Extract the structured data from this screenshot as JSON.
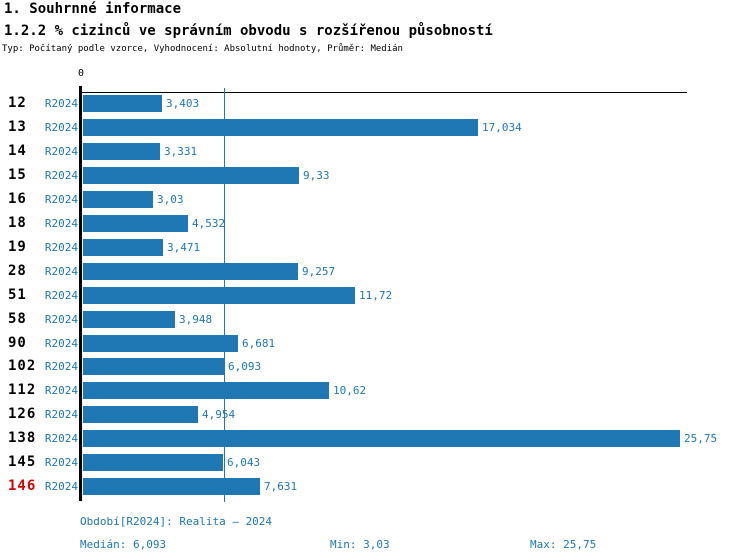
{
  "header": {
    "title": "1. Souhrnné informace",
    "subtitle": "1.2.2 % cizinců ve správním obvodu s rozšířenou působností",
    "meta": "Typ: Počítaný podle vzorce, Vyhodnocení: Absolutní hodnoty, Průměr: Medián"
  },
  "chart_data": {
    "type": "bar",
    "orientation": "horizontal",
    "title": "1.2.2 % cizinců ve správním obvodu s rozšířenou působností",
    "axis": {
      "origin_label": "0",
      "xmin": 0,
      "xmax": 25.75,
      "median_line_value": 6.093
    },
    "series_label": "R2024",
    "categories": [
      "12",
      "13",
      "14",
      "15",
      "16",
      "18",
      "19",
      "28",
      "51",
      "58",
      "90",
      "102",
      "112",
      "126",
      "138",
      "145",
      "146"
    ],
    "rows": [
      {
        "id": "12",
        "period": "R2024",
        "value": 3.403,
        "display": "3,403",
        "highlight": false
      },
      {
        "id": "13",
        "period": "R2024",
        "value": 17.034,
        "display": "17,034",
        "highlight": false
      },
      {
        "id": "14",
        "period": "R2024",
        "value": 3.331,
        "display": "3,331",
        "highlight": false
      },
      {
        "id": "15",
        "period": "R2024",
        "value": 9.33,
        "display": "9,33",
        "highlight": false
      },
      {
        "id": "16",
        "period": "R2024",
        "value": 3.03,
        "display": "3,03",
        "highlight": false
      },
      {
        "id": "18",
        "period": "R2024",
        "value": 4.532,
        "display": "4,532",
        "highlight": false
      },
      {
        "id": "19",
        "period": "R2024",
        "value": 3.471,
        "display": "3,471",
        "highlight": false
      },
      {
        "id": "28",
        "period": "R2024",
        "value": 9.257,
        "display": "9,257",
        "highlight": false
      },
      {
        "id": "51",
        "period": "R2024",
        "value": 11.72,
        "display": "11,72",
        "highlight": false
      },
      {
        "id": "58",
        "period": "R2024",
        "value": 3.948,
        "display": "3,948",
        "highlight": false
      },
      {
        "id": "90",
        "period": "R2024",
        "value": 6.681,
        "display": "6,681",
        "highlight": false
      },
      {
        "id": "102",
        "period": "R2024",
        "value": 6.093,
        "display": "6,093",
        "highlight": false
      },
      {
        "id": "112",
        "period": "R2024",
        "value": 10.62,
        "display": "10,62",
        "highlight": false
      },
      {
        "id": "126",
        "period": "R2024",
        "value": 4.954,
        "display": "4,954",
        "highlight": false
      },
      {
        "id": "138",
        "period": "R2024",
        "value": 25.75,
        "display": "25,75",
        "highlight": false
      },
      {
        "id": "145",
        "period": "R2024",
        "value": 6.043,
        "display": "6,043",
        "highlight": false
      },
      {
        "id": "146",
        "period": "R2024",
        "value": 7.631,
        "display": "7,631",
        "highlight": true
      }
    ]
  },
  "footer": {
    "period_line": "Období[R2024]: Realita – 2024",
    "median": "Medián: 6,093",
    "min": "Min: 3,03",
    "max": "Max: 25,75"
  },
  "colors": {
    "bar": "#1f77b4",
    "accent_text": "#1f77b4",
    "highlight_row": "#d40000",
    "text": "#000000",
    "background": "#ffffff"
  }
}
